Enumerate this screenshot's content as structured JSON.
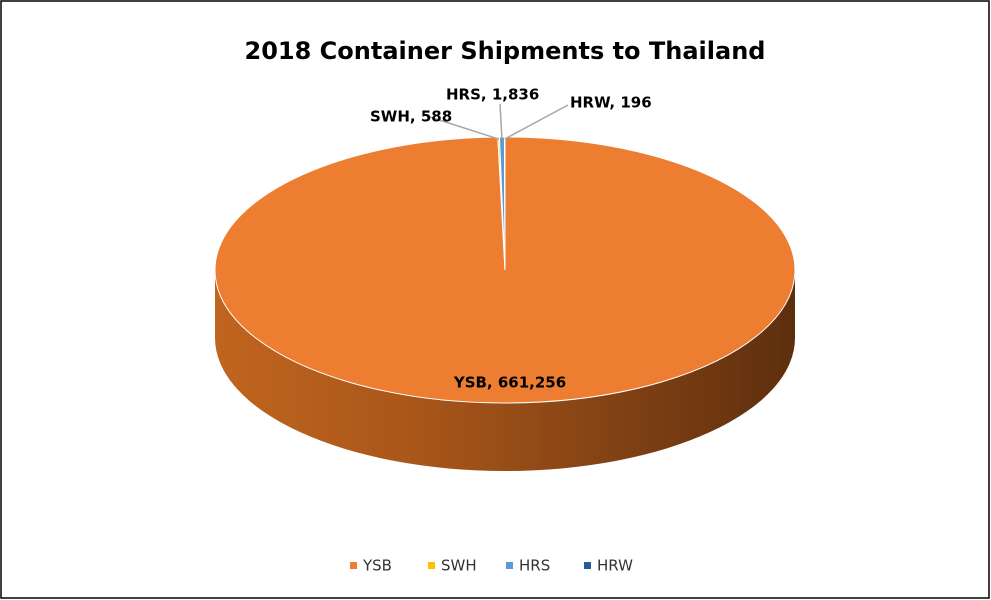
{
  "chart_data": {
    "type": "pie",
    "title": "2018 Container Shipments to Thailand",
    "categories": [
      "YSB",
      "SWH",
      "HRS",
      "HRW"
    ],
    "values": [
      661256,
      588,
      1836,
      196
    ],
    "value_labels": [
      "YSB, 661,256",
      "SWH, 588",
      "HRS, 1,836",
      "HRW, 196"
    ],
    "colors": [
      "#ed7d31",
      "#ffc000",
      "#5b9bd5",
      "#255e91"
    ],
    "legend": "bottom"
  }
}
